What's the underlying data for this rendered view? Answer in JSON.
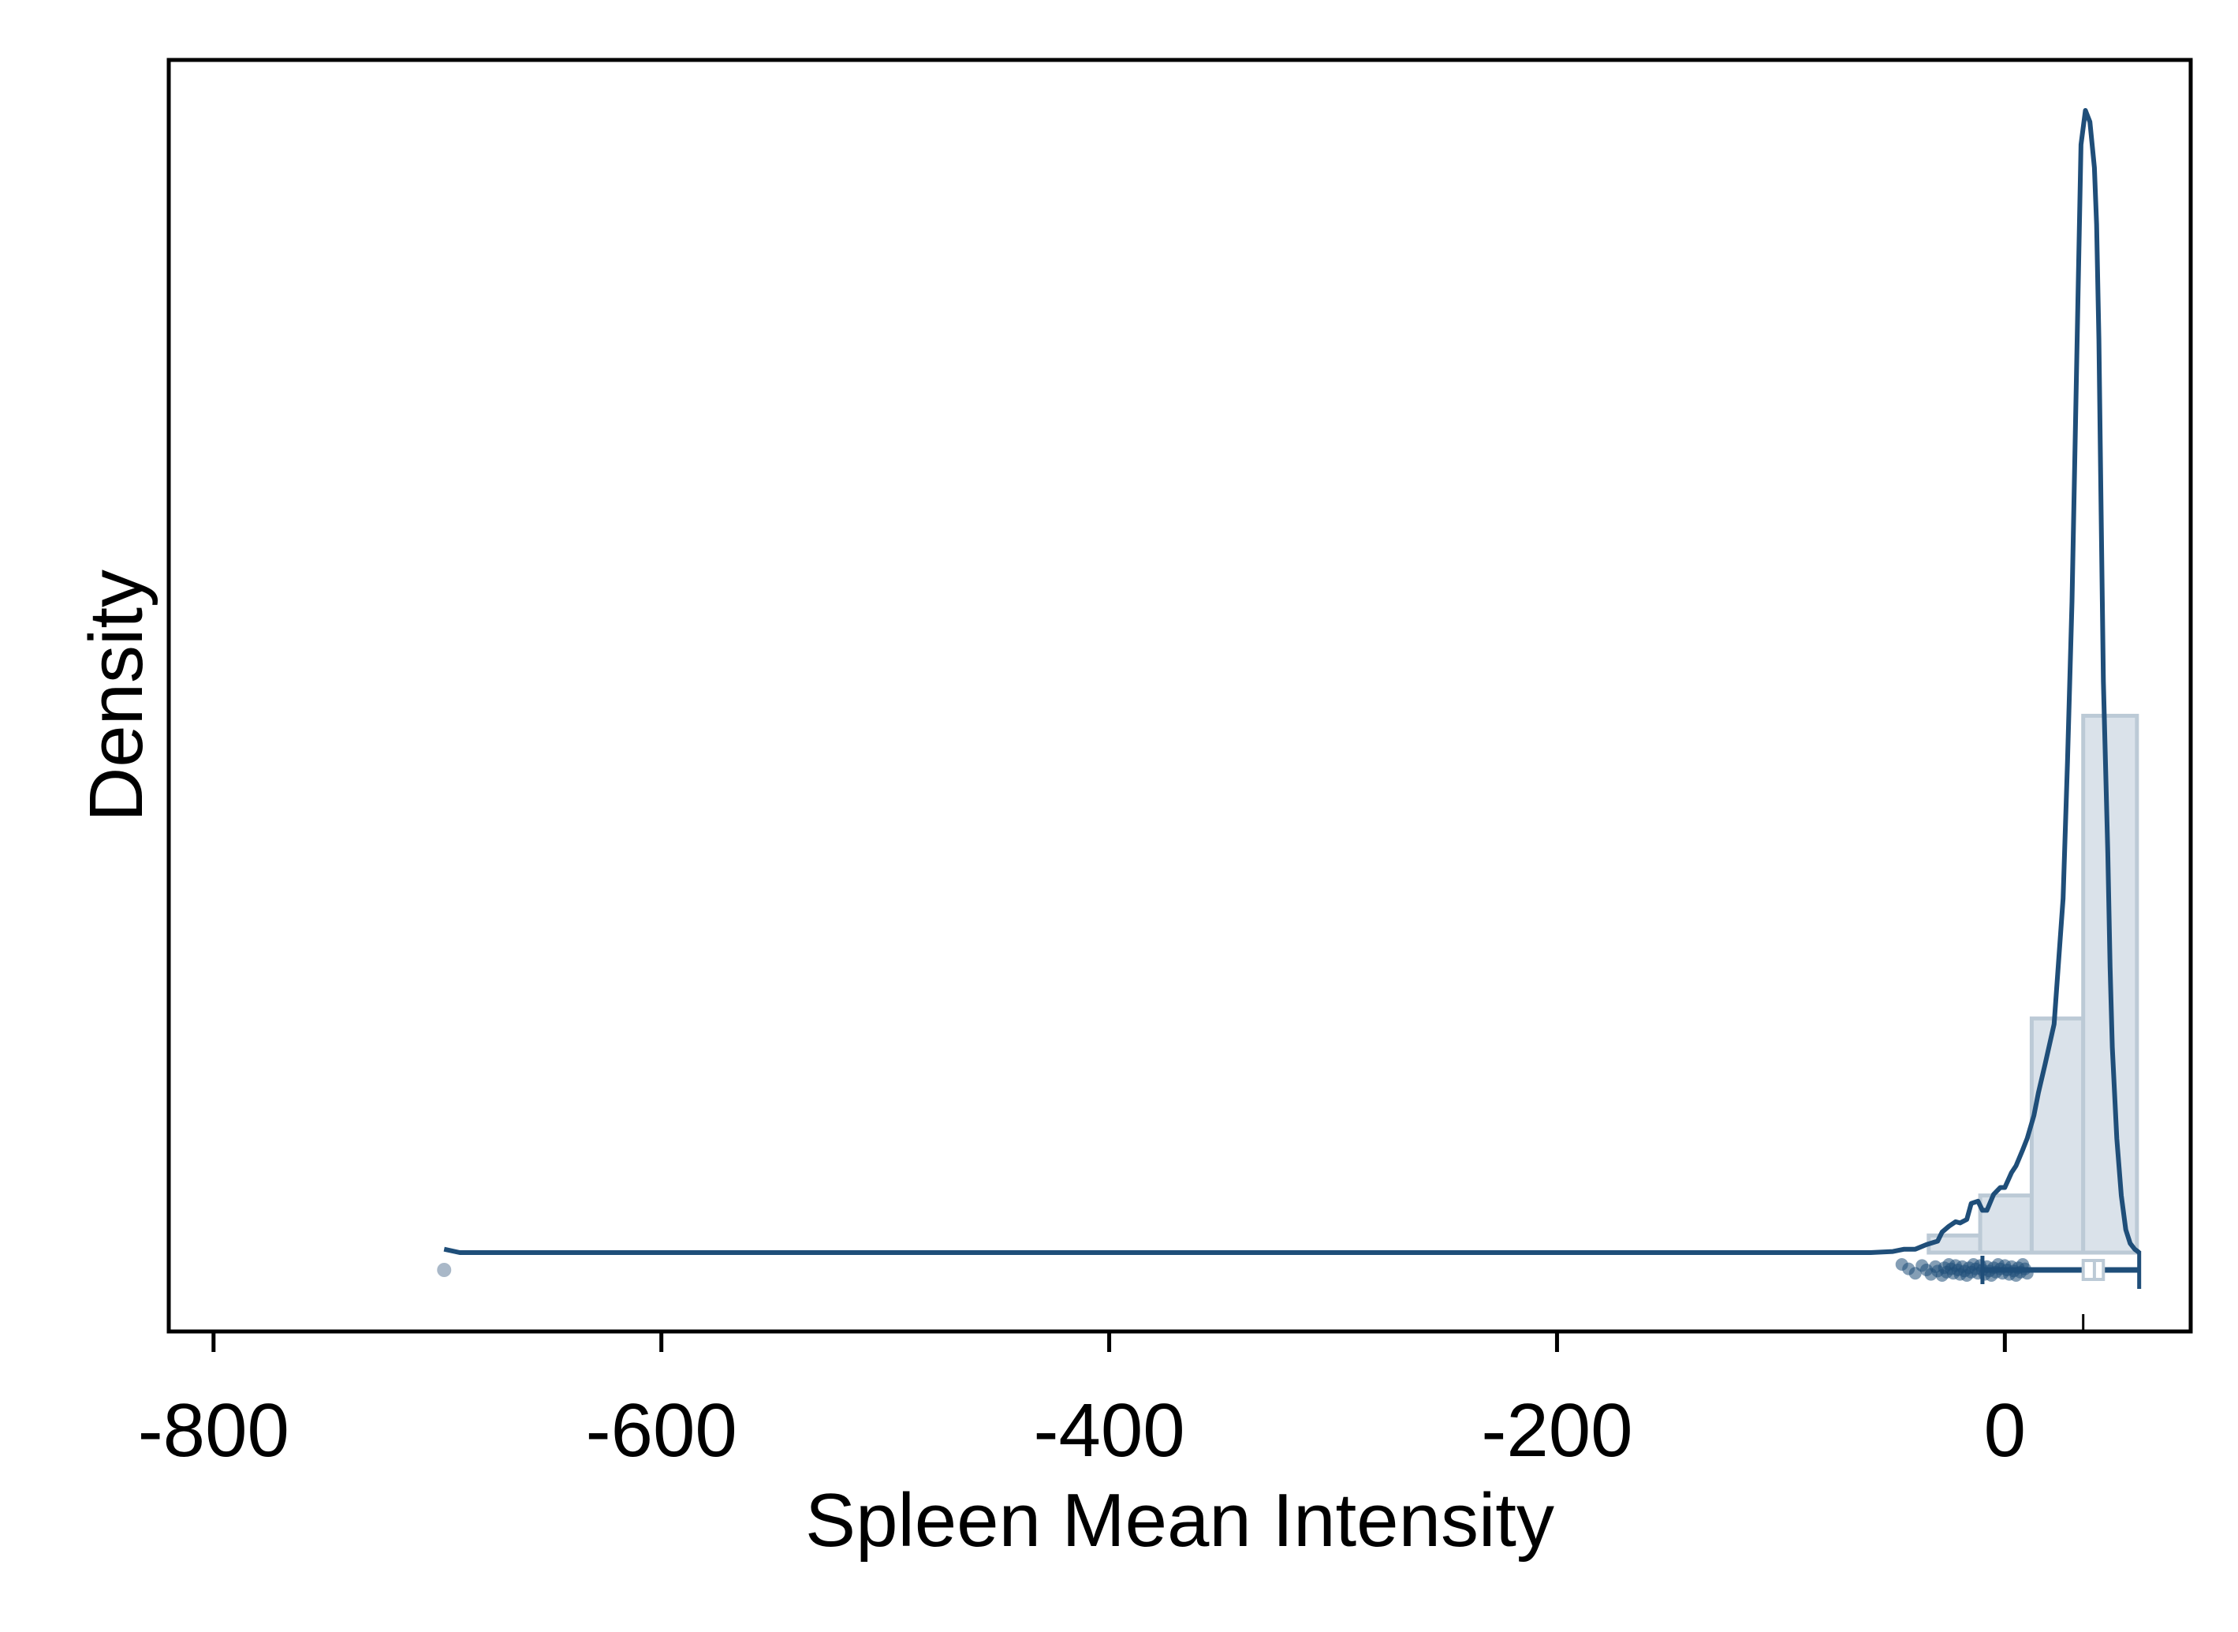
{
  "chart_data": {
    "type": "histogram",
    "xlabel": "Spleen Mean Intensity",
    "ylabel": "Density",
    "xlim": [
      -820,
      83
    ],
    "ylim": [
      0,
      1
    ],
    "xticks": [
      -800,
      -600,
      -400,
      -200,
      0
    ],
    "xtick_labels": [
      "-800",
      "-600",
      "-400",
      "-200",
      "0"
    ],
    "y_ticks_shown": false,
    "grid": false,
    "colors": {
      "line": "#1f4e79",
      "bar_fill": "#dae2ea",
      "bar_edge": "#bccad6",
      "points": "#1f4e79",
      "outlier": "#a9b8c8"
    },
    "histogram": {
      "bin_edges": [
        -34,
        -11,
        12,
        35,
        59
      ],
      "densities": [
        0.015,
        0.05,
        0.205,
        0.47
      ]
    },
    "kde": {
      "x": [
        -697,
        -690,
        -680,
        -600,
        -500,
        -400,
        -300,
        -200,
        -100,
        -60,
        -50,
        -45,
        -40,
        -35,
        -30,
        -28,
        -25,
        -22,
        -20,
        -17,
        -15,
        -12,
        -10,
        -8,
        -5,
        -2,
        0,
        3,
        5,
        8,
        10,
        13,
        15,
        18,
        22,
        26,
        28,
        30,
        32,
        34,
        36,
        38,
        40,
        41,
        42,
        43,
        44,
        46,
        47,
        48,
        50,
        52,
        54,
        56,
        58,
        60
      ],
      "y": [
        0.003,
        0.0,
        0.0,
        0.0,
        0.0,
        0.0,
        0.0,
        0.0,
        0.0,
        0.0,
        0.001,
        0.003,
        0.003,
        0.007,
        0.01,
        0.018,
        0.023,
        0.027,
        0.026,
        0.029,
        0.043,
        0.045,
        0.037,
        0.037,
        0.051,
        0.057,
        0.057,
        0.07,
        0.076,
        0.09,
        0.1,
        0.12,
        0.14,
        0.165,
        0.2,
        0.31,
        0.43,
        0.57,
        0.77,
        0.97,
        1.0,
        0.99,
        0.95,
        0.9,
        0.8,
        0.65,
        0.5,
        0.35,
        0.25,
        0.18,
        0.1,
        0.05,
        0.02,
        0.008,
        0.003,
        0.0
      ]
    },
    "boxplot": {
      "whisker_low": -10,
      "q1": 35,
      "median": 40,
      "q3": 44,
      "whisker_high": 60
    },
    "points": [
      -46,
      -43,
      -40,
      -37,
      -35,
      -33,
      -31,
      -30,
      -28,
      -27,
      -26,
      -25,
      -24,
      -23,
      -22,
      -21,
      -20,
      -19,
      -18,
      -17,
      -16,
      -15,
      -14,
      -13,
      -12,
      -11,
      -10,
      -9,
      -8,
      -7,
      -6,
      -5,
      -4,
      -3,
      -2,
      -1,
      0,
      1,
      2,
      3,
      4,
      5,
      6,
      7,
      8,
      9,
      10
    ],
    "outliers": [
      -697
    ]
  }
}
